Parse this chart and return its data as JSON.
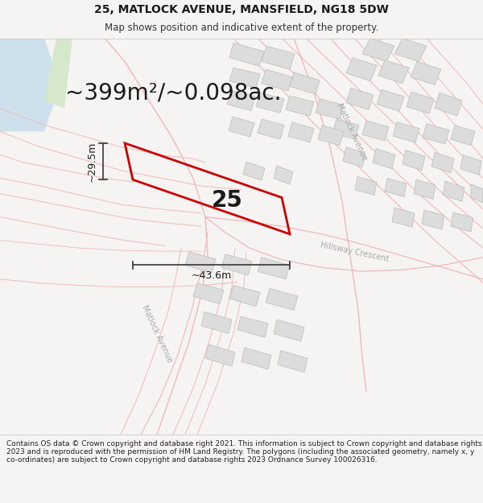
{
  "title_line1": "25, MATLOCK AVENUE, MANSFIELD, NG18 5DW",
  "title_line2": "Map shows position and indicative extent of the property.",
  "area_text": "~399m²/~0.098ac.",
  "width_label": "~43.6m",
  "height_label": "~29.5m",
  "number_label": "25",
  "footer_text": "Contains OS data © Crown copyright and database right 2021. This information is subject to Crown copyright and database rights 2023 and is reproduced with the permission of HM Land Registry. The polygons (including the associated geometry, namely x, y co-ordinates) are subject to Crown copyright and database rights 2023 Ordnance Survey 100026316.",
  "bg_color": "#f5f4f2",
  "map_bg": "#ffffff",
  "road_color": "#f0b8b8",
  "road_label_color": "#aaaaaa",
  "building_fill": "#dcdcdc",
  "building_edge": "#bbbbbb",
  "highlight_color": "#cc0000",
  "dimension_color": "#444444",
  "water_color": "#cde0ec",
  "green_color": "#d5e8cc",
  "title_fontsize": 10,
  "subtitle_fontsize": 8.5,
  "area_fontsize": 20,
  "label_fontsize": 9,
  "number_fontsize": 20,
  "footer_fontsize": 6.5,
  "road_lw": 0.8,
  "road_lw_main": 1.2
}
